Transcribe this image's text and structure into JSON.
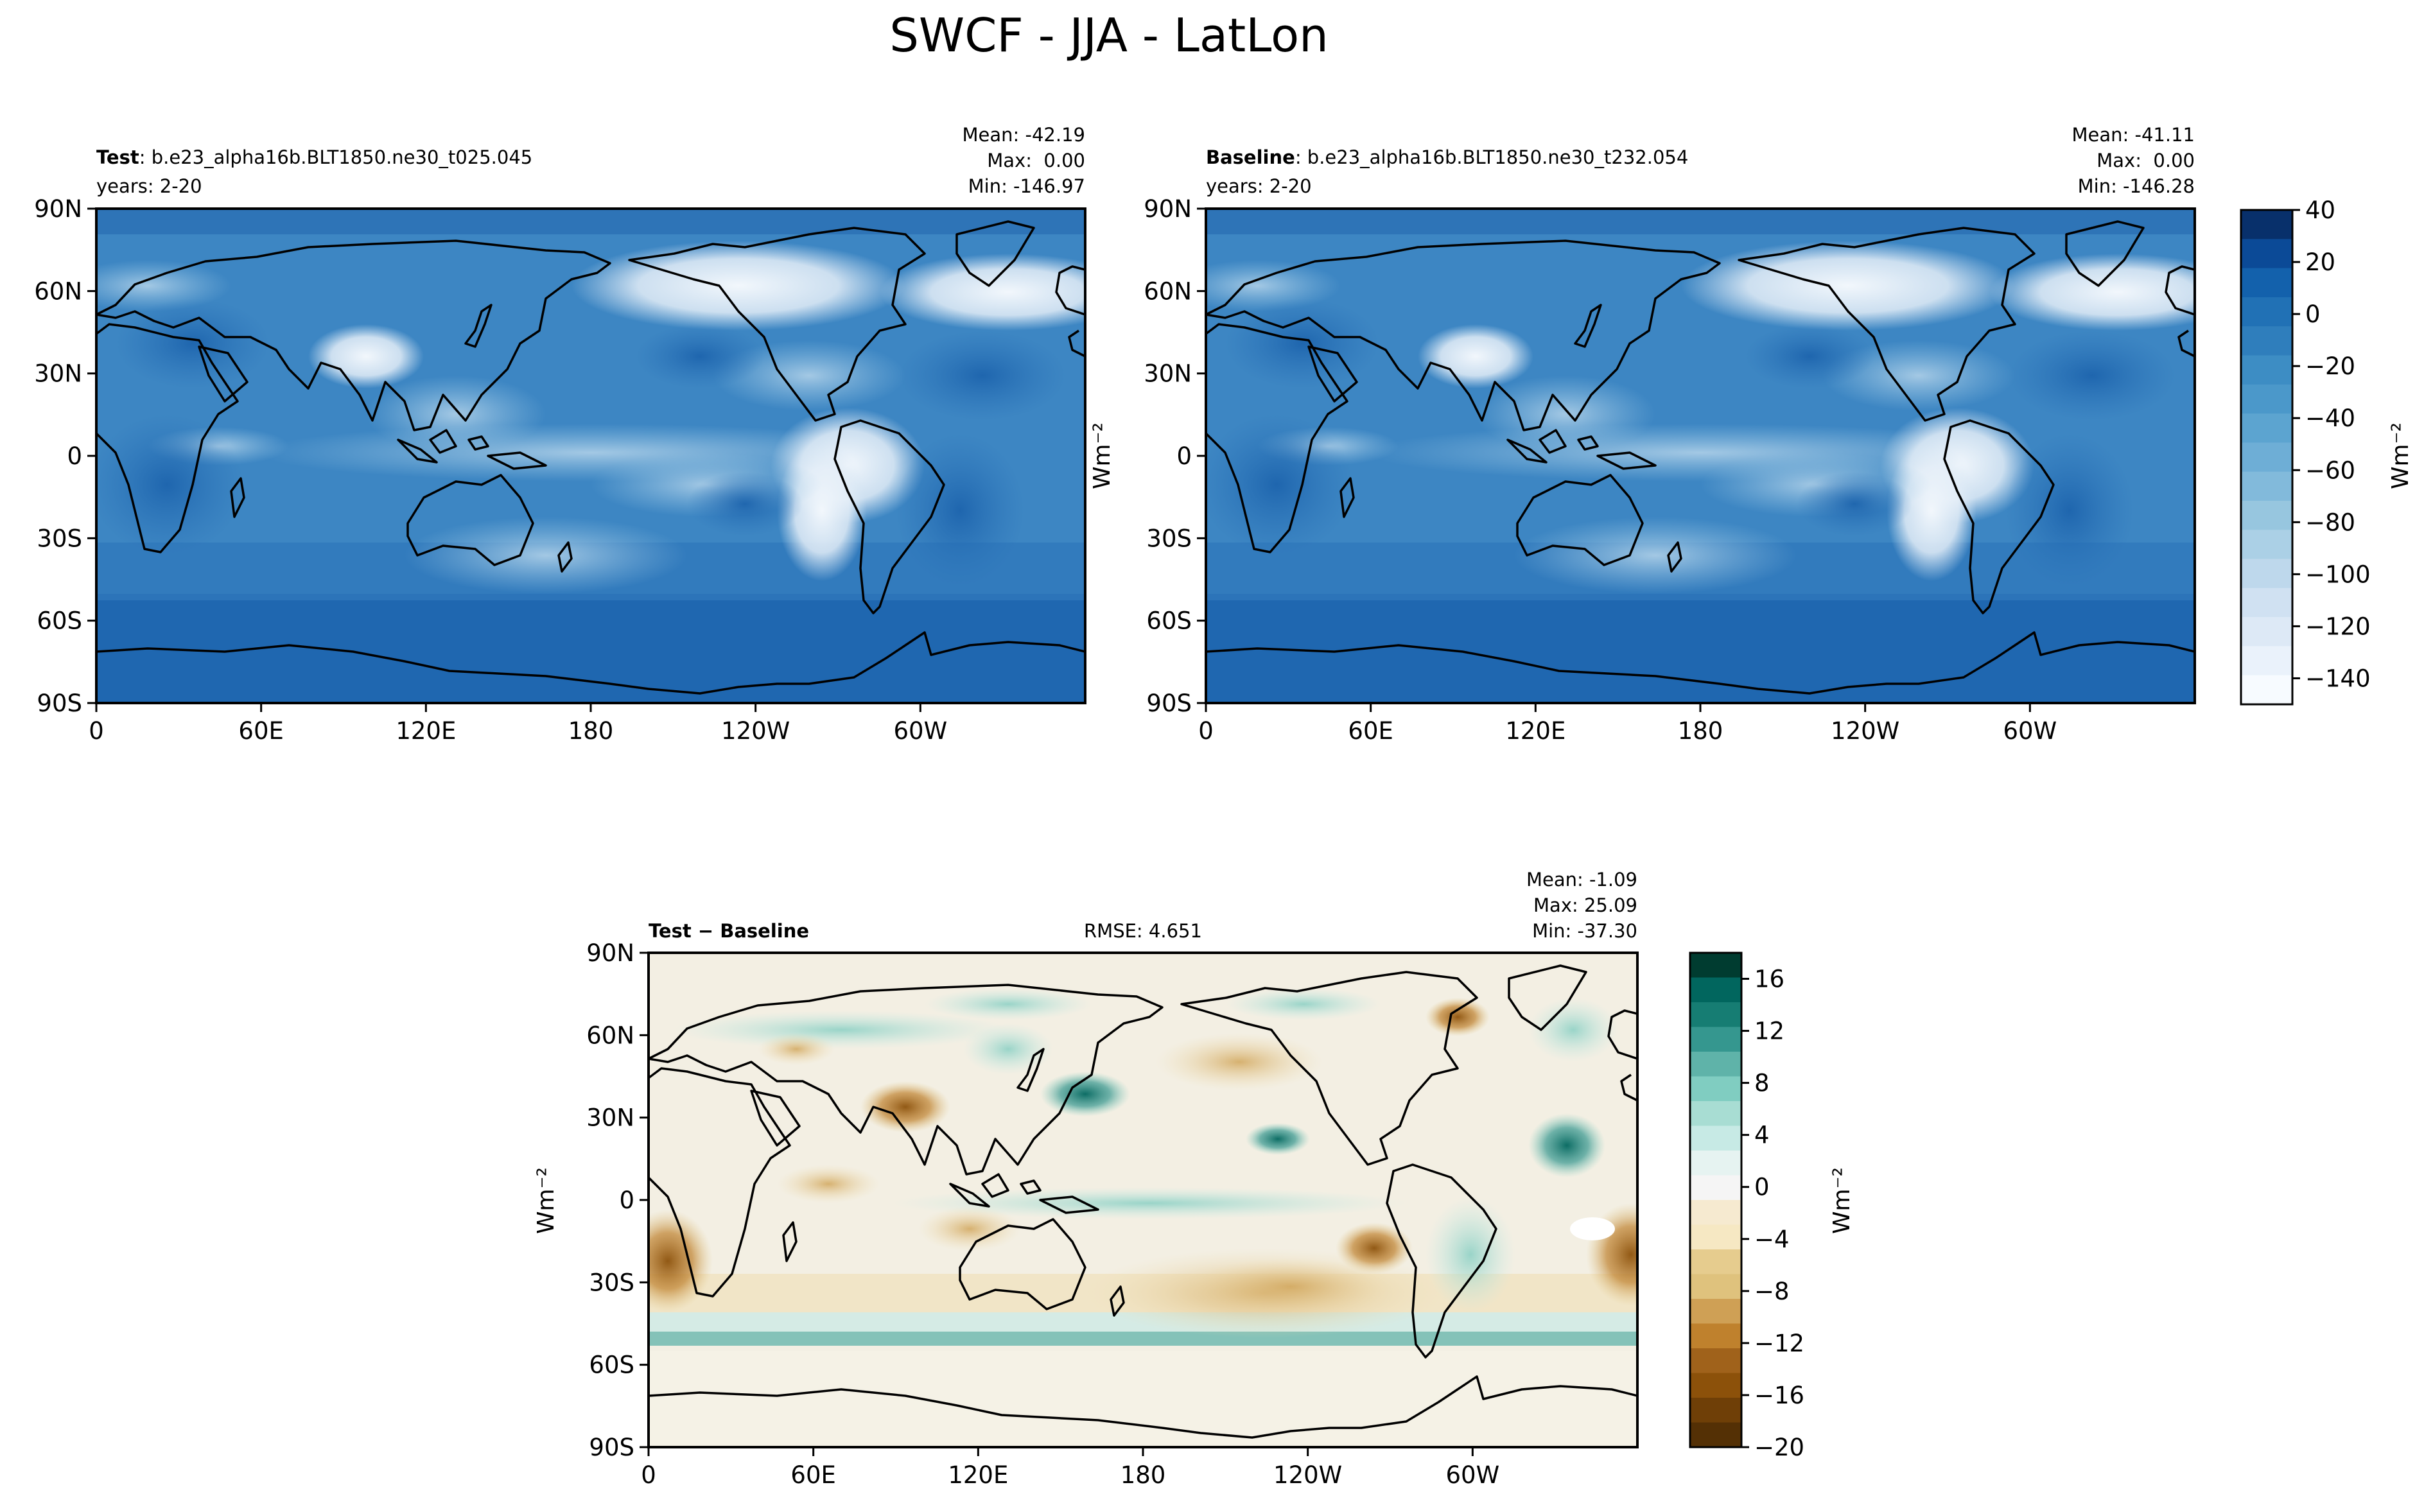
{
  "figure_title": "SWCF - JJA - LatLon",
  "chart_data": [
    {
      "type": "heatmap",
      "panel": "test",
      "label_bold": "Test",
      "label_rest": ": b.e23_alpha16b.BLT1850.ne30_t025.045",
      "years": "years: 2-20",
      "stats": [
        "Mean: -42.19",
        "Max:  0.00",
        "Min: -146.97"
      ],
      "x_ticks": [
        "0",
        "60E",
        "120E",
        "180",
        "120W",
        "60W"
      ],
      "y_ticks": [
        "90N",
        "60N",
        "30N",
        "0",
        "30S",
        "60S",
        "90S"
      ],
      "xlim": [
        0,
        360
      ],
      "ylim": [
        -90,
        90
      ],
      "colormap": "Blues_r"
    },
    {
      "type": "heatmap",
      "panel": "baseline",
      "label_bold": "Baseline",
      "label_rest": ": b.e23_alpha16b.BLT1850.ne30_t232.054",
      "years": "years: 2-20",
      "stats": [
        "Mean: -41.11",
        "Max:  0.00",
        "Min: -146.28"
      ],
      "x_ticks": [
        "0",
        "60E",
        "120E",
        "180",
        "120W",
        "60W"
      ],
      "y_ticks": [
        "90N",
        "60N",
        "30N",
        "0",
        "30S",
        "60S",
        "90S"
      ],
      "xlim": [
        0,
        360
      ],
      "ylim": [
        -90,
        90
      ],
      "ylabel": "Wm⁻²",
      "colormap": "Blues_r"
    },
    {
      "type": "heatmap",
      "panel": "difference",
      "label_bold": "Test − Baseline",
      "rmse": "RMSE: 4.651",
      "stats": [
        "Mean: -1.09",
        "Max: 25.09",
        "Min: -37.30"
      ],
      "x_ticks": [
        "0",
        "60E",
        "120E",
        "180",
        "120W",
        "60W"
      ],
      "y_ticks": [
        "90N",
        "60N",
        "30N",
        "0",
        "30S",
        "60S",
        "90S"
      ],
      "xlim": [
        0,
        360
      ],
      "ylim": [
        -90,
        90
      ],
      "ylabel": "Wm⁻²",
      "colormap": "BrBG"
    }
  ],
  "colorbars": [
    {
      "ticks": [
        "40",
        "20",
        "0",
        "−20",
        "−40",
        "−60",
        "−80",
        "−100",
        "−120",
        "−140"
      ],
      "range": [
        -150,
        40
      ],
      "label": "Wm⁻²",
      "colors": [
        "#08306b",
        "#0b4a97",
        "#1361ac",
        "#2171b5",
        "#2f7ebc",
        "#3d8dc4",
        "#4b98ca",
        "#5ca4d0",
        "#6eaed6",
        "#82badb",
        "#97c6df",
        "#abd0e6",
        "#bed8ec",
        "#d0e1f2",
        "#dde9f6",
        "#eaf2fb",
        "#f7fbff"
      ]
    },
    {
      "ticks": [
        "16",
        "12",
        "8",
        "4",
        "0",
        "−4",
        "−8",
        "−12",
        "−16",
        "−20"
      ],
      "range": [
        -20,
        18
      ],
      "label": "Wm⁻²",
      "colors": [
        "#003c30",
        "#01665e",
        "#167d73",
        "#35978f",
        "#5fb3a9",
        "#80cdc1",
        "#a8ddd3",
        "#c7eae5",
        "#e6f3f1",
        "#f5f5f5",
        "#f6ead0",
        "#f6e8c3",
        "#e6cc8e",
        "#dfc27d",
        "#cfa055",
        "#bf812d",
        "#a0621b",
        "#8c510a",
        "#6f3f07",
        "#543005"
      ]
    }
  ]
}
